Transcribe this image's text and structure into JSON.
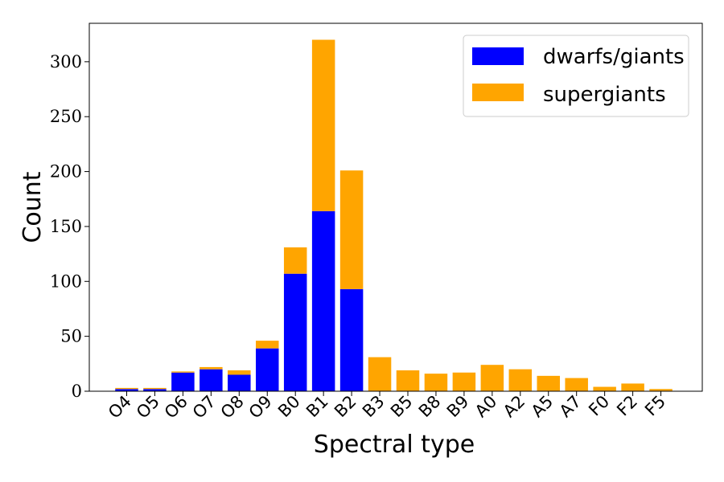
{
  "chart_data": {
    "type": "bar",
    "stacked": true,
    "categories": [
      "O4",
      "O5",
      "O6",
      "O7",
      "O8",
      "O9",
      "B0",
      "B1",
      "B2",
      "B3",
      "B5",
      "B8",
      "B9",
      "A0",
      "A2",
      "A5",
      "A7",
      "F0",
      "F2",
      "F5"
    ],
    "series": [
      {
        "name": "dwarfs/giants",
        "color": "#0000ff",
        "values": [
          2,
          2,
          17,
          20,
          15,
          39,
          107,
          164,
          93,
          0,
          0,
          0,
          0,
          0,
          0,
          0,
          0,
          0,
          0,
          0
        ]
      },
      {
        "name": "supergiants",
        "color": "#ffa500",
        "values": [
          1,
          1,
          1,
          2,
          4,
          7,
          24,
          156,
          108,
          31,
          19,
          16,
          17,
          24,
          20,
          14,
          12,
          4,
          7,
          2
        ]
      }
    ],
    "xlabel": "Spectral type",
    "ylabel": "Count",
    "ylim": [
      0,
      335
    ],
    "yticks": [
      0,
      50,
      100,
      150,
      200,
      250,
      300
    ],
    "grid": false,
    "legend_position": "top-right"
  }
}
